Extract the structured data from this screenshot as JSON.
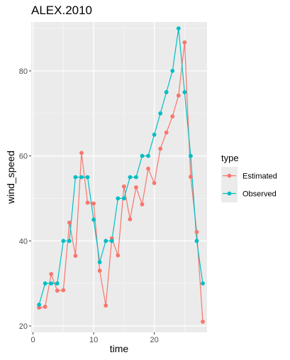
{
  "chart_data": {
    "type": "line",
    "title": "ALEX.2010",
    "xlabel": "time",
    "ylabel": "wind_speed",
    "xlim": [
      -0.3,
      28.7
    ],
    "ylim": [
      18.5,
      91.5
    ],
    "xticks": [
      0,
      10,
      20
    ],
    "xtick_labels": [
      "0",
      "10",
      "20"
    ],
    "yticks": [
      20,
      40,
      60,
      80
    ],
    "ytick_labels": [
      "20",
      "40",
      "60",
      "80"
    ],
    "grid": true,
    "legend": {
      "title": "type",
      "position": "right",
      "entries": [
        "Estimated",
        "Observed"
      ]
    },
    "series": [
      {
        "name": "Estimated",
        "color": "#F8766D",
        "x": [
          1,
          2,
          3,
          4,
          5,
          6,
          7,
          8,
          9,
          10,
          11,
          12,
          13,
          14,
          15,
          16,
          17,
          18,
          19,
          20,
          21,
          22,
          23,
          24,
          25,
          26,
          27,
          28
        ],
        "values": [
          24.3,
          24.5,
          32.2,
          28.3,
          28.4,
          44.3,
          36.5,
          60.7,
          49,
          48.8,
          33,
          24.8,
          40.6,
          36.6,
          52.8,
          45.1,
          52.6,
          48.6,
          57,
          53.6,
          61.7,
          65.5,
          69.3,
          74.2,
          86.7,
          55.1,
          42.1,
          21
        ]
      },
      {
        "name": "Observed",
        "color": "#00BFC4",
        "x": [
          1,
          2,
          3,
          4,
          5,
          6,
          7,
          8,
          9,
          10,
          11,
          12,
          13,
          14,
          15,
          16,
          17,
          18,
          19,
          20,
          21,
          22,
          23,
          24,
          25,
          26,
          27,
          28
        ],
        "values": [
          25,
          30,
          30,
          30,
          40,
          40,
          55,
          55,
          55,
          45,
          35,
          40,
          40,
          50,
          50,
          55,
          55,
          60,
          60,
          65,
          70,
          75,
          80,
          90,
          75,
          60,
          40,
          30
        ]
      }
    ]
  }
}
